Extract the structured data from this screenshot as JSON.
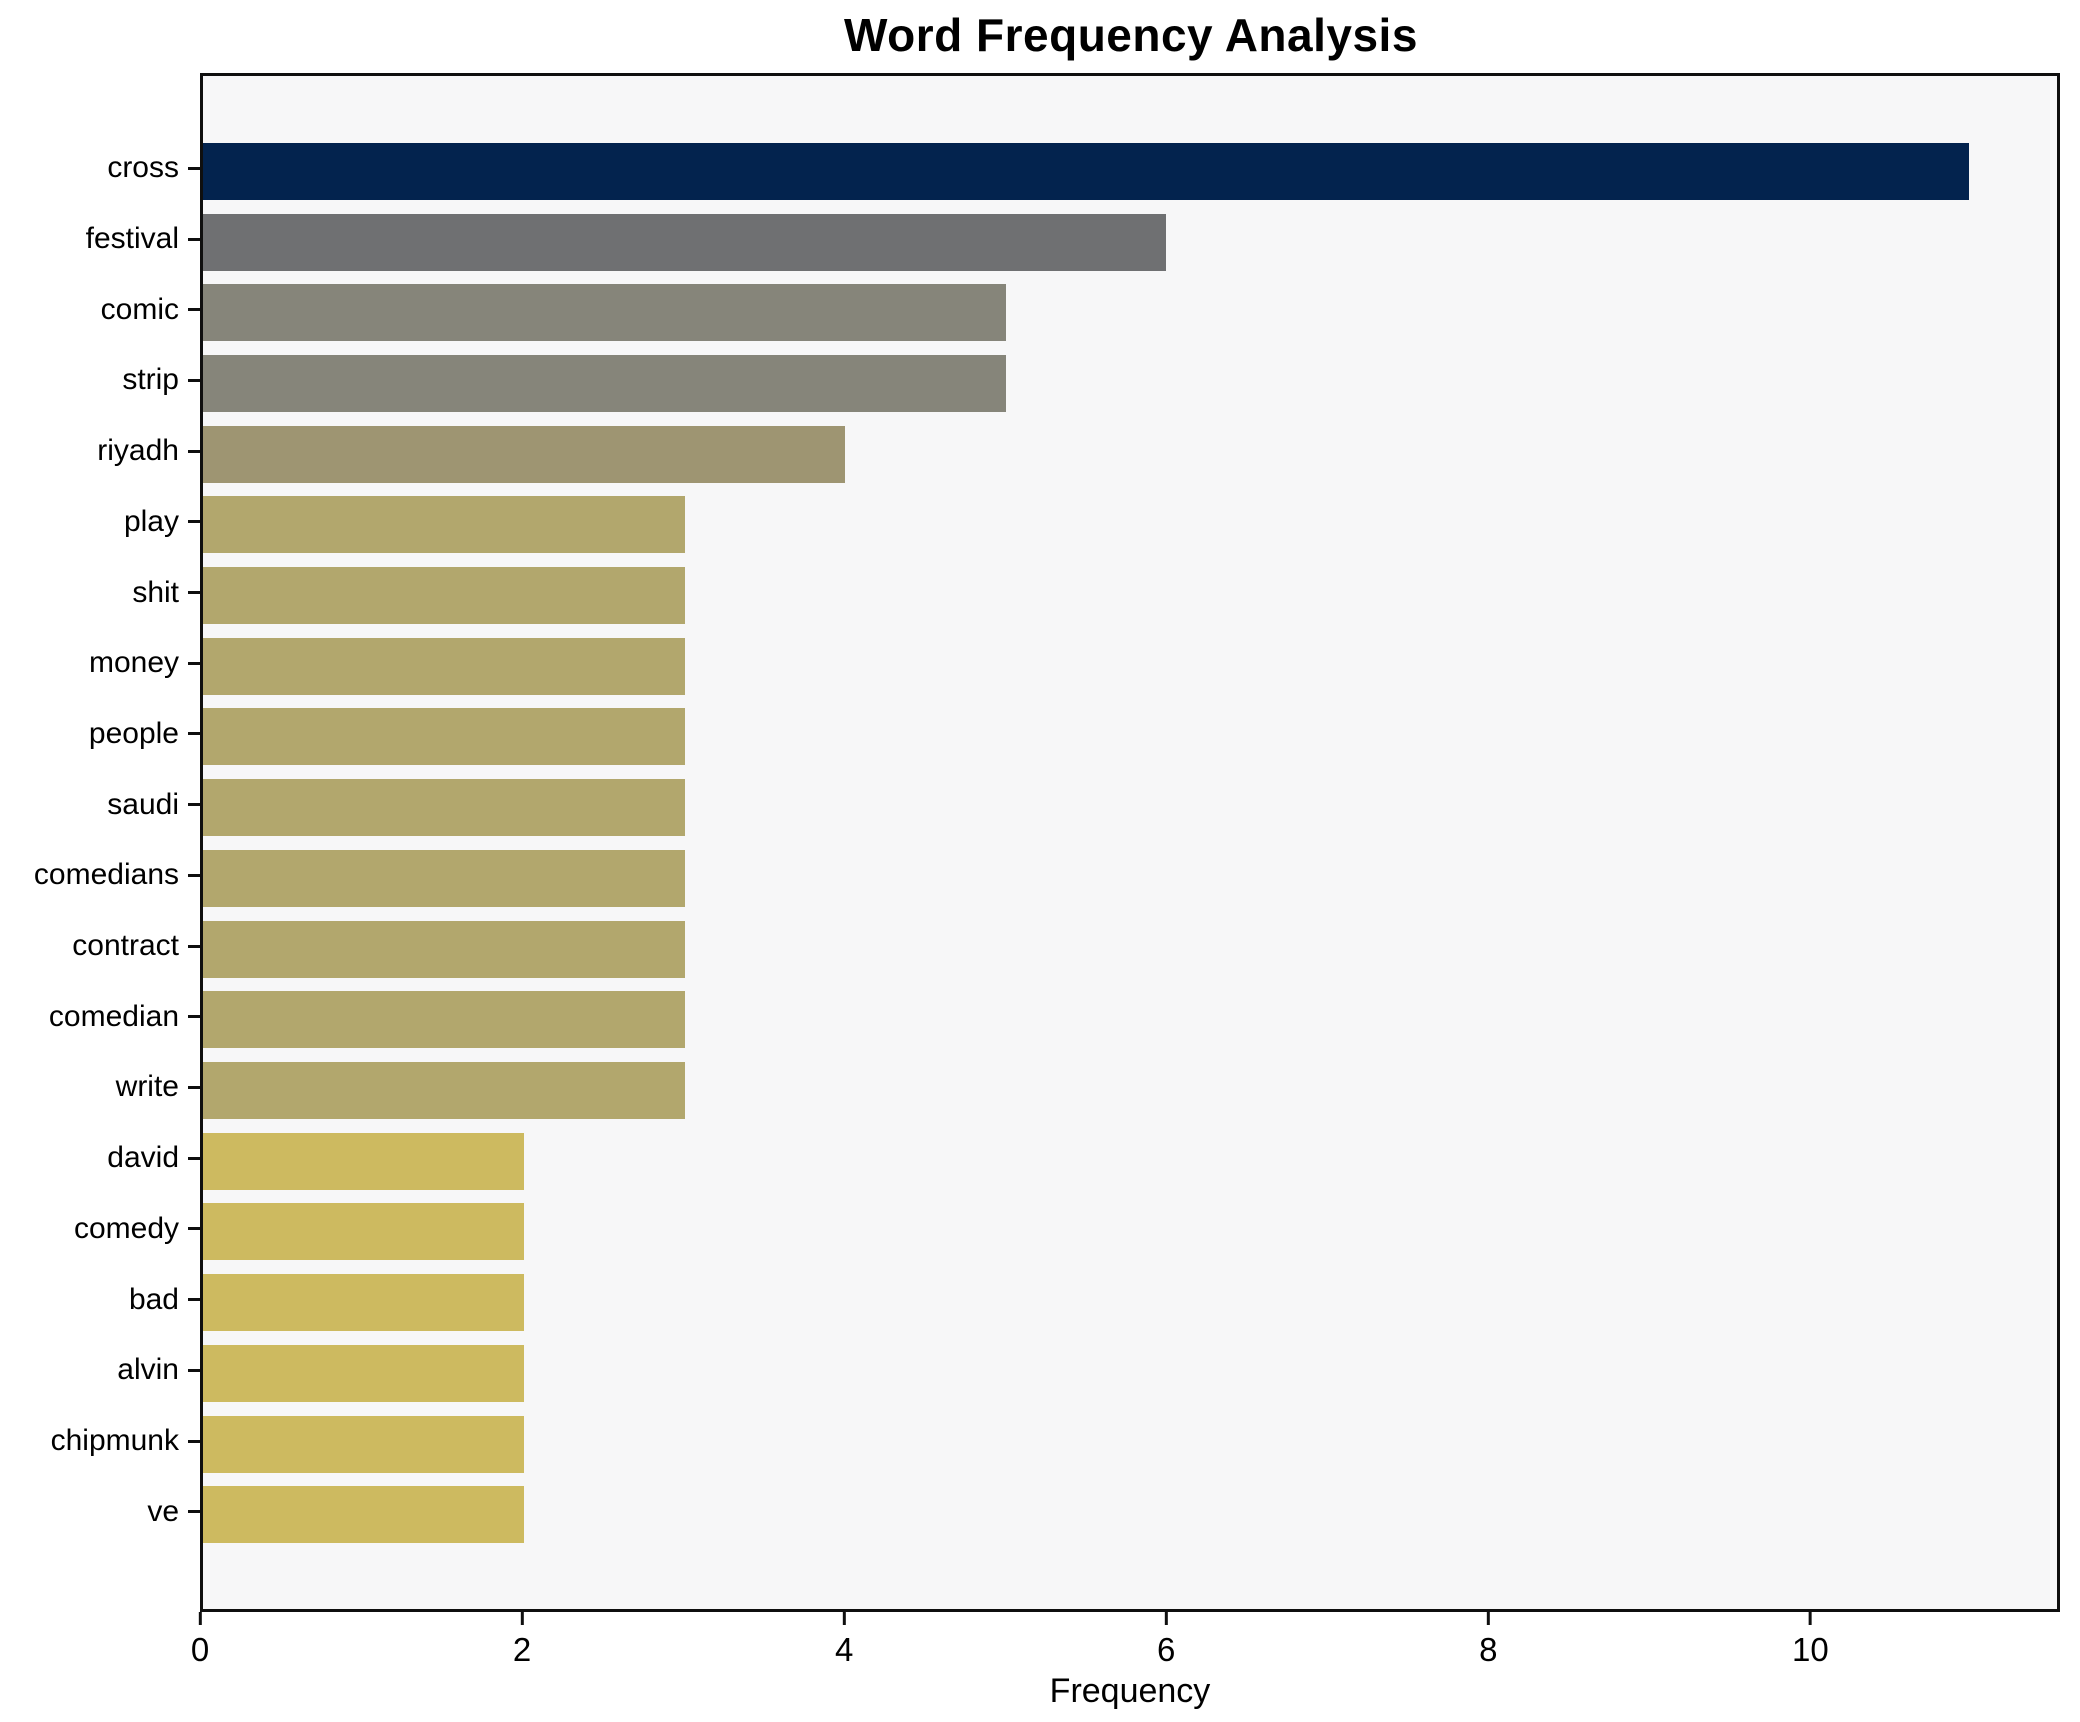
{
  "title": "Word Frequency Analysis",
  "xlabel": "Frequency",
  "colors": {
    "figure_background": "#ffffff",
    "plot_background": "#f7f7f8",
    "spine": "#0f0f0f",
    "text": "#000000"
  },
  "chart_data": {
    "type": "bar",
    "orientation": "horizontal",
    "title": "Word Frequency Analysis",
    "xlabel": "Frequency",
    "ylabel": "",
    "grid": false,
    "legend": null,
    "xlim": [
      0,
      11.55
    ],
    "xticks": [
      0,
      2,
      4,
      6,
      8,
      10
    ],
    "categories": [
      "cross",
      "festival",
      "comic",
      "strip",
      "riyadh",
      "play",
      "shit",
      "money",
      "people",
      "saudi",
      "comedians",
      "contract",
      "comedian",
      "write",
      "david",
      "comedy",
      "bad",
      "alvin",
      "chipmunk",
      "ve"
    ],
    "values": [
      11,
      6,
      5,
      5,
      4,
      3,
      3,
      3,
      3,
      3,
      3,
      3,
      3,
      3,
      2,
      2,
      2,
      2,
      2,
      2
    ],
    "bar_colors": [
      "#03234e",
      "#6f7072",
      "#86857a",
      "#86857a",
      "#9e9572",
      "#b2a76d",
      "#b2a76d",
      "#b2a76d",
      "#b2a76d",
      "#b2a76d",
      "#b2a76d",
      "#b2a76d",
      "#b2a76d",
      "#b2a76d",
      "#cdba60",
      "#cdba60",
      "#cdba60",
      "#cdba60",
      "#cdba60",
      "#cdba60"
    ]
  }
}
